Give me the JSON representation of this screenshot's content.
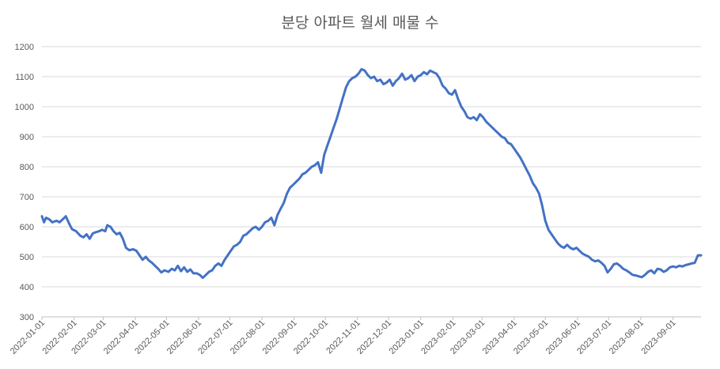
{
  "chart_data": {
    "type": "line",
    "title": "분당 아파트 월세 매물 수",
    "xlabel": "",
    "ylabel": "",
    "ylim": [
      300,
      1200
    ],
    "yticks": [
      300,
      400,
      500,
      600,
      700,
      800,
      900,
      1000,
      1100,
      1200
    ],
    "x_tick_labels": [
      "2022-01-01",
      "2022-02-01",
      "2022-03-01",
      "2022-04-01",
      "2022-05-01",
      "2022-06-01",
      "2022-07-01",
      "2022-08-01",
      "2022-09-01",
      "2022-10-01",
      "2022-11-01",
      "2022-12-01",
      "2023-01-01",
      "2023-02-01",
      "2023-03-01",
      "2023-04-01",
      "2023-05-01",
      "2023-06-01",
      "2023-07-01",
      "2023-08-01",
      "2023-09-01"
    ],
    "xlim": [
      "2022-01-01",
      "2023-09-28"
    ],
    "grid": true,
    "legend": "none",
    "series": [
      {
        "color": "#4472c4",
        "points": [
          [
            "2022-01-01",
            635
          ],
          [
            "2022-01-03",
            615
          ],
          [
            "2022-01-05",
            630
          ],
          [
            "2022-01-08",
            625
          ],
          [
            "2022-01-11",
            615
          ],
          [
            "2022-01-15",
            620
          ],
          [
            "2022-01-18",
            615
          ],
          [
            "2022-01-22",
            628
          ],
          [
            "2022-01-24",
            635
          ],
          [
            "2022-01-27",
            612
          ],
          [
            "2022-01-30",
            592
          ],
          [
            "2022-02-03",
            585
          ],
          [
            "2022-02-07",
            570
          ],
          [
            "2022-02-10",
            565
          ],
          [
            "2022-02-13",
            575
          ],
          [
            "2022-02-16",
            560
          ],
          [
            "2022-02-19",
            578
          ],
          [
            "2022-02-22",
            582
          ],
          [
            "2022-02-25",
            585
          ],
          [
            "2022-02-28",
            590
          ],
          [
            "2022-03-03",
            585
          ],
          [
            "2022-03-05",
            605
          ],
          [
            "2022-03-08",
            600
          ],
          [
            "2022-03-11",
            585
          ],
          [
            "2022-03-14",
            575
          ],
          [
            "2022-03-17",
            580
          ],
          [
            "2022-03-20",
            560
          ],
          [
            "2022-03-23",
            530
          ],
          [
            "2022-03-26",
            522
          ],
          [
            "2022-03-30",
            525
          ],
          [
            "2022-04-02",
            520
          ],
          [
            "2022-04-05",
            505
          ],
          [
            "2022-04-08",
            490
          ],
          [
            "2022-04-11",
            500
          ],
          [
            "2022-04-14",
            488
          ],
          [
            "2022-04-17",
            480
          ],
          [
            "2022-04-20",
            470
          ],
          [
            "2022-04-23",
            460
          ],
          [
            "2022-04-26",
            448
          ],
          [
            "2022-04-29",
            455
          ],
          [
            "2022-05-03",
            450
          ],
          [
            "2022-05-06",
            460
          ],
          [
            "2022-05-09",
            455
          ],
          [
            "2022-05-12",
            470
          ],
          [
            "2022-05-15",
            452
          ],
          [
            "2022-05-18",
            465
          ],
          [
            "2022-05-21",
            450
          ],
          [
            "2022-05-24",
            458
          ],
          [
            "2022-05-27",
            445
          ],
          [
            "2022-05-30",
            445
          ],
          [
            "2022-06-02",
            440
          ],
          [
            "2022-06-05",
            430
          ],
          [
            "2022-06-08",
            440
          ],
          [
            "2022-06-11",
            450
          ],
          [
            "2022-06-14",
            455
          ],
          [
            "2022-06-17",
            470
          ],
          [
            "2022-06-20",
            478
          ],
          [
            "2022-06-23",
            470
          ],
          [
            "2022-06-26",
            490
          ],
          [
            "2022-06-29",
            505
          ],
          [
            "2022-07-02",
            520
          ],
          [
            "2022-07-05",
            535
          ],
          [
            "2022-07-08",
            540
          ],
          [
            "2022-07-11",
            550
          ],
          [
            "2022-07-14",
            570
          ],
          [
            "2022-07-17",
            575
          ],
          [
            "2022-07-20",
            585
          ],
          [
            "2022-07-23",
            595
          ],
          [
            "2022-07-26",
            600
          ],
          [
            "2022-07-29",
            590
          ],
          [
            "2022-08-01",
            600
          ],
          [
            "2022-08-04",
            615
          ],
          [
            "2022-08-07",
            620
          ],
          [
            "2022-08-10",
            630
          ],
          [
            "2022-08-13",
            605
          ],
          [
            "2022-08-16",
            640
          ],
          [
            "2022-08-19",
            660
          ],
          [
            "2022-08-22",
            680
          ],
          [
            "2022-08-25",
            710
          ],
          [
            "2022-08-28",
            730
          ],
          [
            "2022-08-31",
            740
          ],
          [
            "2022-09-03",
            750
          ],
          [
            "2022-09-06",
            760
          ],
          [
            "2022-09-09",
            775
          ],
          [
            "2022-09-12",
            780
          ],
          [
            "2022-09-15",
            790
          ],
          [
            "2022-09-18",
            800
          ],
          [
            "2022-09-21",
            805
          ],
          [
            "2022-09-24",
            815
          ],
          [
            "2022-09-27",
            780
          ],
          [
            "2022-09-30",
            840
          ],
          [
            "2022-10-03",
            870
          ],
          [
            "2022-10-06",
            900
          ],
          [
            "2022-10-09",
            930
          ],
          [
            "2022-10-12",
            960
          ],
          [
            "2022-10-15",
            995
          ],
          [
            "2022-10-18",
            1030
          ],
          [
            "2022-10-21",
            1065
          ],
          [
            "2022-10-24",
            1085
          ],
          [
            "2022-10-27",
            1095
          ],
          [
            "2022-10-30",
            1100
          ],
          [
            "2022-11-02",
            1110
          ],
          [
            "2022-11-05",
            1125
          ],
          [
            "2022-11-08",
            1120
          ],
          [
            "2022-11-11",
            1105
          ],
          [
            "2022-11-14",
            1095
          ],
          [
            "2022-11-17",
            1100
          ],
          [
            "2022-11-20",
            1085
          ],
          [
            "2022-11-23",
            1090
          ],
          [
            "2022-11-26",
            1075
          ],
          [
            "2022-11-29",
            1080
          ],
          [
            "2022-12-02",
            1090
          ],
          [
            "2022-12-05",
            1070
          ],
          [
            "2022-12-08",
            1085
          ],
          [
            "2022-12-11",
            1095
          ],
          [
            "2022-12-14",
            1110
          ],
          [
            "2022-12-17",
            1090
          ],
          [
            "2022-12-20",
            1095
          ],
          [
            "2022-12-23",
            1105
          ],
          [
            "2022-12-26",
            1085
          ],
          [
            "2022-12-29",
            1100
          ],
          [
            "2023-01-01",
            1105
          ],
          [
            "2023-01-04",
            1115
          ],
          [
            "2023-01-07",
            1108
          ],
          [
            "2023-01-10",
            1120
          ],
          [
            "2023-01-13",
            1115
          ],
          [
            "2023-01-16",
            1110
          ],
          [
            "2023-01-19",
            1095
          ],
          [
            "2023-01-22",
            1070
          ],
          [
            "2023-01-25",
            1060
          ],
          [
            "2023-01-28",
            1045
          ],
          [
            "2023-01-31",
            1040
          ],
          [
            "2023-02-03",
            1055
          ],
          [
            "2023-02-06",
            1025
          ],
          [
            "2023-02-09",
            1000
          ],
          [
            "2023-02-12",
            985
          ],
          [
            "2023-02-15",
            965
          ],
          [
            "2023-02-18",
            960
          ],
          [
            "2023-02-21",
            965
          ],
          [
            "2023-02-24",
            955
          ],
          [
            "2023-02-27",
            975
          ],
          [
            "2023-03-02",
            965
          ],
          [
            "2023-03-05",
            950
          ],
          [
            "2023-03-08",
            940
          ],
          [
            "2023-03-11",
            930
          ],
          [
            "2023-03-14",
            920
          ],
          [
            "2023-03-17",
            910
          ],
          [
            "2023-03-20",
            900
          ],
          [
            "2023-03-23",
            895
          ],
          [
            "2023-03-26",
            880
          ],
          [
            "2023-03-29",
            875
          ],
          [
            "2023-04-01",
            860
          ],
          [
            "2023-04-04",
            845
          ],
          [
            "2023-04-07",
            830
          ],
          [
            "2023-04-10",
            810
          ],
          [
            "2023-04-13",
            790
          ],
          [
            "2023-04-16",
            770
          ],
          [
            "2023-04-19",
            745
          ],
          [
            "2023-04-22",
            730
          ],
          [
            "2023-04-25",
            710
          ],
          [
            "2023-04-28",
            670
          ],
          [
            "2023-05-01",
            620
          ],
          [
            "2023-05-04",
            590
          ],
          [
            "2023-05-07",
            575
          ],
          [
            "2023-05-10",
            560
          ],
          [
            "2023-05-13",
            545
          ],
          [
            "2023-05-16",
            535
          ],
          [
            "2023-05-19",
            530
          ],
          [
            "2023-05-22",
            540
          ],
          [
            "2023-05-25",
            530
          ],
          [
            "2023-05-28",
            525
          ],
          [
            "2023-05-31",
            530
          ],
          [
            "2023-06-03",
            520
          ],
          [
            "2023-06-06",
            510
          ],
          [
            "2023-06-09",
            505
          ],
          [
            "2023-06-12",
            500
          ],
          [
            "2023-06-15",
            490
          ],
          [
            "2023-06-18",
            485
          ],
          [
            "2023-06-21",
            488
          ],
          [
            "2023-06-24",
            480
          ],
          [
            "2023-06-27",
            470
          ],
          [
            "2023-06-30",
            448
          ],
          [
            "2023-07-03",
            460
          ],
          [
            "2023-07-06",
            475
          ],
          [
            "2023-07-09",
            478
          ],
          [
            "2023-07-12",
            470
          ],
          [
            "2023-07-15",
            460
          ],
          [
            "2023-07-18",
            455
          ],
          [
            "2023-07-21",
            448
          ],
          [
            "2023-07-24",
            440
          ],
          [
            "2023-07-27",
            438
          ],
          [
            "2023-07-30",
            435
          ],
          [
            "2023-08-02",
            432
          ],
          [
            "2023-08-05",
            440
          ],
          [
            "2023-08-08",
            450
          ],
          [
            "2023-08-11",
            455
          ],
          [
            "2023-08-14",
            445
          ],
          [
            "2023-08-17",
            460
          ],
          [
            "2023-08-20",
            458
          ],
          [
            "2023-08-23",
            450
          ],
          [
            "2023-08-26",
            455
          ],
          [
            "2023-08-29",
            465
          ],
          [
            "2023-09-01",
            468
          ],
          [
            "2023-09-04",
            465
          ],
          [
            "2023-09-07",
            470
          ],
          [
            "2023-09-10",
            468
          ],
          [
            "2023-09-13",
            472
          ],
          [
            "2023-09-16",
            475
          ],
          [
            "2023-09-19",
            478
          ],
          [
            "2023-09-22",
            480
          ],
          [
            "2023-09-25",
            505
          ],
          [
            "2023-09-28",
            505
          ]
        ]
      }
    ]
  }
}
